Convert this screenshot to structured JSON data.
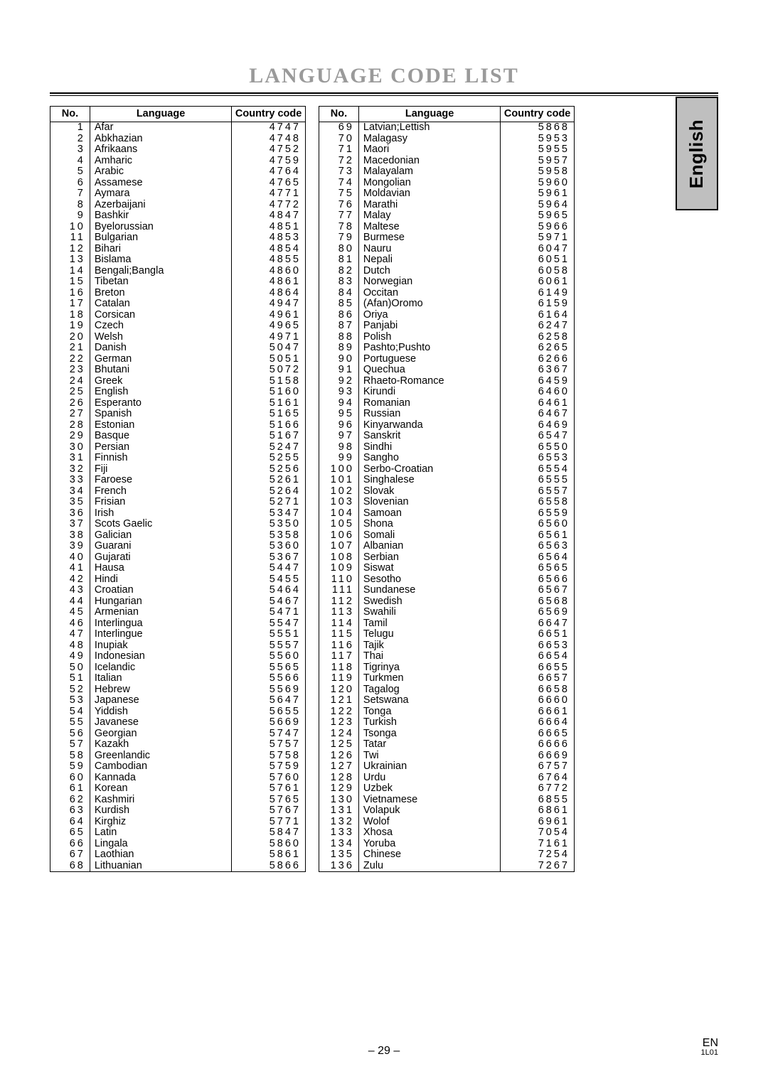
{
  "title": "LANGUAGE CODE LIST",
  "side_tab": "English",
  "page_number": "– 29 –",
  "footer_right_top": "EN",
  "footer_right_small": "1L01",
  "headers": {
    "no": "No.",
    "language": "Language",
    "code": "Country code"
  },
  "left": [
    {
      "n": "1",
      "l": "Afar",
      "c": "4747"
    },
    {
      "n": "2",
      "l": "Abkhazian",
      "c": "4748"
    },
    {
      "n": "3",
      "l": "Afrikaans",
      "c": "4752"
    },
    {
      "n": "4",
      "l": "Amharic",
      "c": "4759"
    },
    {
      "n": "5",
      "l": "Arabic",
      "c": "4764"
    },
    {
      "n": "6",
      "l": "Assamese",
      "c": "4765"
    },
    {
      "n": "7",
      "l": "Aymara",
      "c": "4771"
    },
    {
      "n": "8",
      "l": "Azerbaijani",
      "c": "4772"
    },
    {
      "n": "9",
      "l": "Bashkir",
      "c": "4847"
    },
    {
      "n": "10",
      "l": "Byelorussian",
      "c": "4851"
    },
    {
      "n": "11",
      "l": "Bulgarian",
      "c": "4853"
    },
    {
      "n": "12",
      "l": "Bihari",
      "c": "4854"
    },
    {
      "n": "13",
      "l": "Bislama",
      "c": "4855"
    },
    {
      "n": "14",
      "l": "Bengali;Bangla",
      "c": "4860"
    },
    {
      "n": "15",
      "l": "Tibetan",
      "c": "4861"
    },
    {
      "n": "16",
      "l": "Breton",
      "c": "4864"
    },
    {
      "n": "17",
      "l": "Catalan",
      "c": "4947"
    },
    {
      "n": "18",
      "l": "Corsican",
      "c": "4961"
    },
    {
      "n": "19",
      "l": "Czech",
      "c": "4965"
    },
    {
      "n": "20",
      "l": "Welsh",
      "c": "4971"
    },
    {
      "n": "21",
      "l": "Danish",
      "c": "5047"
    },
    {
      "n": "22",
      "l": "German",
      "c": "5051"
    },
    {
      "n": "23",
      "l": "Bhutani",
      "c": "5072"
    },
    {
      "n": "24",
      "l": "Greek",
      "c": "5158"
    },
    {
      "n": "25",
      "l": "English",
      "c": "5160"
    },
    {
      "n": "26",
      "l": "Esperanto",
      "c": "5161"
    },
    {
      "n": "27",
      "l": "Spanish",
      "c": "5165"
    },
    {
      "n": "28",
      "l": "Estonian",
      "c": "5166"
    },
    {
      "n": "29",
      "l": "Basque",
      "c": "5167"
    },
    {
      "n": "30",
      "l": "Persian",
      "c": "5247"
    },
    {
      "n": "31",
      "l": "Finnish",
      "c": "5255"
    },
    {
      "n": "32",
      "l": "Fiji",
      "c": "5256"
    },
    {
      "n": "33",
      "l": "Faroese",
      "c": "5261"
    },
    {
      "n": "34",
      "l": "French",
      "c": "5264"
    },
    {
      "n": "35",
      "l": "Frisian",
      "c": "5271"
    },
    {
      "n": "36",
      "l": "Irish",
      "c": "5347"
    },
    {
      "n": "37",
      "l": "Scots Gaelic",
      "c": "5350"
    },
    {
      "n": "38",
      "l": "Galician",
      "c": "5358"
    },
    {
      "n": "39",
      "l": "Guarani",
      "c": "5360"
    },
    {
      "n": "40",
      "l": "Gujarati",
      "c": "5367"
    },
    {
      "n": "41",
      "l": "Hausa",
      "c": "5447"
    },
    {
      "n": "42",
      "l": "Hindi",
      "c": "5455"
    },
    {
      "n": "43",
      "l": "Croatian",
      "c": "5464"
    },
    {
      "n": "44",
      "l": "Hungarian",
      "c": "5467"
    },
    {
      "n": "45",
      "l": "Armenian",
      "c": "5471"
    },
    {
      "n": "46",
      "l": "Interlingua",
      "c": "5547"
    },
    {
      "n": "47",
      "l": "Interlingue",
      "c": "5551"
    },
    {
      "n": "48",
      "l": "Inupiak",
      "c": "5557"
    },
    {
      "n": "49",
      "l": "Indonesian",
      "c": "5560"
    },
    {
      "n": "50",
      "l": "Icelandic",
      "c": "5565"
    },
    {
      "n": "51",
      "l": "Italian",
      "c": "5566"
    },
    {
      "n": "52",
      "l": "Hebrew",
      "c": "5569"
    },
    {
      "n": "53",
      "l": "Japanese",
      "c": "5647"
    },
    {
      "n": "54",
      "l": "Yiddish",
      "c": "5655"
    },
    {
      "n": "55",
      "l": "Javanese",
      "c": "5669"
    },
    {
      "n": "56",
      "l": "Georgian",
      "c": "5747"
    },
    {
      "n": "57",
      "l": "Kazakh",
      "c": "5757"
    },
    {
      "n": "58",
      "l": "Greenlandic",
      "c": "5758"
    },
    {
      "n": "59",
      "l": "Cambodian",
      "c": "5759"
    },
    {
      "n": "60",
      "l": "Kannada",
      "c": "5760"
    },
    {
      "n": "61",
      "l": "Korean",
      "c": "5761"
    },
    {
      "n": "62",
      "l": "Kashmiri",
      "c": "5765"
    },
    {
      "n": "63",
      "l": "Kurdish",
      "c": "5767"
    },
    {
      "n": "64",
      "l": "Kirghiz",
      "c": "5771"
    },
    {
      "n": "65",
      "l": "Latin",
      "c": "5847"
    },
    {
      "n": "66",
      "l": "Lingala",
      "c": "5860"
    },
    {
      "n": "67",
      "l": "Laothian",
      "c": "5861"
    },
    {
      "n": "68",
      "l": "Lithuanian",
      "c": "5866"
    }
  ],
  "right": [
    {
      "n": "69",
      "l": "Latvian;Lettish",
      "c": "5868"
    },
    {
      "n": "70",
      "l": "Malagasy",
      "c": "5953"
    },
    {
      "n": "71",
      "l": "Maori",
      "c": "5955"
    },
    {
      "n": "72",
      "l": "Macedonian",
      "c": "5957"
    },
    {
      "n": "73",
      "l": "Malayalam",
      "c": "5958"
    },
    {
      "n": "74",
      "l": "Mongolian",
      "c": "5960"
    },
    {
      "n": "75",
      "l": "Moldavian",
      "c": "5961"
    },
    {
      "n": "76",
      "l": "Marathi",
      "c": "5964"
    },
    {
      "n": "77",
      "l": "Malay",
      "c": "5965"
    },
    {
      "n": "78",
      "l": "Maltese",
      "c": "5966"
    },
    {
      "n": "79",
      "l": "Burmese",
      "c": "5971"
    },
    {
      "n": "80",
      "l": "Nauru",
      "c": "6047"
    },
    {
      "n": "81",
      "l": "Nepali",
      "c": "6051"
    },
    {
      "n": "82",
      "l": "Dutch",
      "c": "6058"
    },
    {
      "n": "83",
      "l": "Norwegian",
      "c": "6061"
    },
    {
      "n": "84",
      "l": "Occitan",
      "c": "6149"
    },
    {
      "n": "85",
      "l": "(Afan)Oromo",
      "c": "6159"
    },
    {
      "n": "86",
      "l": "Oriya",
      "c": "6164"
    },
    {
      "n": "87",
      "l": "Panjabi",
      "c": "6247"
    },
    {
      "n": "88",
      "l": "Polish",
      "c": "6258"
    },
    {
      "n": "89",
      "l": "Pashto;Pushto",
      "c": "6265"
    },
    {
      "n": "90",
      "l": "Portuguese",
      "c": "6266"
    },
    {
      "n": "91",
      "l": "Quechua",
      "c": "6367"
    },
    {
      "n": "92",
      "l": "Rhaeto-Romance",
      "c": "6459"
    },
    {
      "n": "93",
      "l": "Kirundi",
      "c": "6460"
    },
    {
      "n": "94",
      "l": "Romanian",
      "c": "6461"
    },
    {
      "n": "95",
      "l": "Russian",
      "c": "6467"
    },
    {
      "n": "96",
      "l": "Kinyarwanda",
      "c": "6469"
    },
    {
      "n": "97",
      "l": "Sanskrit",
      "c": "6547"
    },
    {
      "n": "98",
      "l": "Sindhi",
      "c": "6550"
    },
    {
      "n": "99",
      "l": "Sangho",
      "c": "6553"
    },
    {
      "n": "100",
      "l": "Serbo-Croatian",
      "c": "6554"
    },
    {
      "n": "101",
      "l": "Singhalese",
      "c": "6555"
    },
    {
      "n": "102",
      "l": "Slovak",
      "c": "6557"
    },
    {
      "n": "103",
      "l": "Slovenian",
      "c": "6558"
    },
    {
      "n": "104",
      "l": "Samoan",
      "c": "6559"
    },
    {
      "n": "105",
      "l": "Shona",
      "c": "6560"
    },
    {
      "n": "106",
      "l": "Somali",
      "c": "6561"
    },
    {
      "n": "107",
      "l": "Albanian",
      "c": "6563"
    },
    {
      "n": "108",
      "l": "Serbian",
      "c": "6564"
    },
    {
      "n": "109",
      "l": "Siswat",
      "c": "6565"
    },
    {
      "n": "110",
      "l": "Sesotho",
      "c": "6566"
    },
    {
      "n": "111",
      "l": "Sundanese",
      "c": "6567"
    },
    {
      "n": "112",
      "l": "Swedish",
      "c": "6568"
    },
    {
      "n": "113",
      "l": "Swahili",
      "c": "6569"
    },
    {
      "n": "114",
      "l": "Tamil",
      "c": "6647"
    },
    {
      "n": "115",
      "l": "Telugu",
      "c": "6651"
    },
    {
      "n": "116",
      "l": "Tajik",
      "c": "6653"
    },
    {
      "n": "117",
      "l": "Thai",
      "c": "6654"
    },
    {
      "n": "118",
      "l": "Tigrinya",
      "c": "6655"
    },
    {
      "n": "119",
      "l": "Turkmen",
      "c": "6657"
    },
    {
      "n": "120",
      "l": "Tagalog",
      "c": "6658"
    },
    {
      "n": "121",
      "l": "Setswana",
      "c": "6660"
    },
    {
      "n": "122",
      "l": "Tonga",
      "c": "6661"
    },
    {
      "n": "123",
      "l": "Turkish",
      "c": "6664"
    },
    {
      "n": "124",
      "l": "Tsonga",
      "c": "6665"
    },
    {
      "n": "125",
      "l": "Tatar",
      "c": "6666"
    },
    {
      "n": "126",
      "l": "Twi",
      "c": "6669"
    },
    {
      "n": "127",
      "l": "Ukrainian",
      "c": "6757"
    },
    {
      "n": "128",
      "l": "Urdu",
      "c": "6764"
    },
    {
      "n": "129",
      "l": "Uzbek",
      "c": "6772"
    },
    {
      "n": "130",
      "l": "Vietnamese",
      "c": "6855"
    },
    {
      "n": "131",
      "l": "Volapuk",
      "c": "6861"
    },
    {
      "n": "132",
      "l": "Wolof",
      "c": "6961"
    },
    {
      "n": "133",
      "l": "Xhosa",
      "c": "7054"
    },
    {
      "n": "134",
      "l": "Yoruba",
      "c": "7161"
    },
    {
      "n": "135",
      "l": "Chinese",
      "c": "7254"
    },
    {
      "n": "136",
      "l": "Zulu",
      "c": "7267"
    }
  ]
}
